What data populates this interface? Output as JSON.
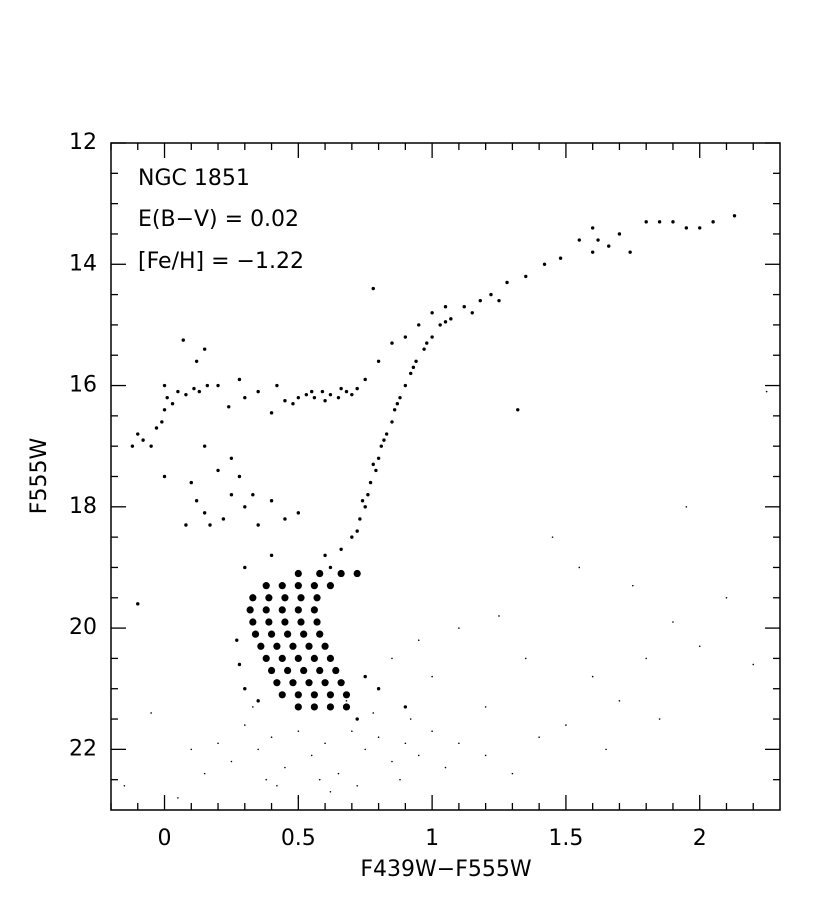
{
  "chart_data": {
    "type": "scatter",
    "x_label": "F439W−F555W",
    "y_label": "F555W",
    "annotations": [
      "NGC 1851",
      "E(B−V) = 0.02",
      "[Fe/H] = −1.22"
    ],
    "xlim": [
      -0.2,
      2.3
    ],
    "ylim": [
      23,
      12
    ],
    "xticks": [
      0,
      0.5,
      1,
      1.5,
      2
    ],
    "yticks": [
      12,
      14,
      16,
      18,
      20,
      22
    ],
    "x_minor_ticks": [
      -0.2,
      -0.1,
      0.1,
      0.2,
      0.3,
      0.4,
      0.6,
      0.7,
      0.8,
      0.9,
      1.1,
      1.2,
      1.3,
      1.4,
      1.6,
      1.7,
      1.8,
      1.9,
      2.1,
      2.2
    ],
    "y_minor_ticks": [
      12.5,
      13,
      13.5,
      14.5,
      15,
      15.5,
      16.5,
      17,
      17.5,
      18.5,
      19,
      19.5,
      20.5,
      21,
      21.5,
      22.5
    ],
    "series": [
      {
        "color": "#000000",
        "size": 3.6,
        "x": [
          0.5,
          0.58,
          0.66,
          0.72,
          0.38,
          0.44,
          0.5,
          0.56,
          0.62,
          0.33,
          0.39,
          0.45,
          0.51,
          0.57,
          0.32,
          0.38,
          0.44,
          0.5,
          0.56,
          0.33,
          0.39,
          0.45,
          0.51,
          0.57,
          0.34,
          0.4,
          0.46,
          0.52,
          0.58,
          0.36,
          0.42,
          0.48,
          0.54,
          0.6,
          0.38,
          0.44,
          0.5,
          0.56,
          0.62,
          0.4,
          0.46,
          0.52,
          0.58,
          0.64,
          0.42,
          0.48,
          0.54,
          0.6,
          0.66,
          0.44,
          0.5,
          0.56,
          0.62,
          0.68,
          0.5,
          0.56,
          0.62,
          0.68
        ],
        "y": [
          19.1,
          19.1,
          19.1,
          19.1,
          19.3,
          19.3,
          19.3,
          19.3,
          19.3,
          19.5,
          19.5,
          19.5,
          19.5,
          19.5,
          19.7,
          19.7,
          19.7,
          19.7,
          19.7,
          19.9,
          19.9,
          19.9,
          19.9,
          19.9,
          20.1,
          20.1,
          20.1,
          20.1,
          20.1,
          20.3,
          20.3,
          20.3,
          20.3,
          20.3,
          20.5,
          20.5,
          20.5,
          20.5,
          20.5,
          20.7,
          20.7,
          20.7,
          20.7,
          20.7,
          20.9,
          20.9,
          20.9,
          20.9,
          20.9,
          21.1,
          21.1,
          21.1,
          21.1,
          21.1,
          21.3,
          21.3,
          21.3,
          21.3
        ]
      },
      {
        "color": "#000000",
        "size": 1.7,
        "x": [
          0.62,
          0.66,
          0.7,
          0.73,
          0.75,
          0.76,
          0.77,
          0.79,
          0.8,
          0.81,
          0.83,
          0.85,
          0.86,
          0.88,
          0.9,
          0.92,
          0.94,
          0.97,
          1.0,
          1.03,
          1.07,
          1.12,
          1.18,
          1.22,
          1.28,
          1.35,
          1.42,
          1.48,
          0.78,
          0.74,
          0.72,
          0.82,
          0.87,
          0.93,
          1.05,
          0.98,
          1.15,
          1.25,
          0.85,
          0.9,
          0.95,
          1.0,
          1.05,
          0.8,
          0.75,
          1.6,
          1.62,
          1.66,
          1.7,
          1.74,
          1.8,
          1.85,
          1.9,
          1.95,
          2.0,
          2.05,
          2.13,
          1.6,
          1.55,
          0.5,
          0.53,
          0.56,
          0.59,
          0.62,
          0.65,
          0.68,
          0.7,
          0.72,
          0.55,
          0.6,
          0.66,
          0.48,
          0.45,
          0.4,
          0.42,
          0.35,
          0.3,
          0.28,
          0.24,
          0.2,
          0.15,
          0.12,
          0.07,
          -0.12,
          -0.1,
          -0.08,
          -0.05,
          -0.03,
          -0.01,
          0.0,
          0.01,
          0.03,
          0.05,
          0.08,
          0.11,
          0.13,
          0.16,
          0.0,
          0.0,
          0.1,
          0.12,
          0.15,
          0.17,
          0.08,
          0.25,
          0.3,
          0.22,
          0.35,
          0.28,
          0.2,
          0.33,
          0.4,
          0.15,
          0.25,
          0.45,
          0.5,
          0.3,
          0.4,
          0.6,
          0.27,
          0.28,
          0.35,
          0.75,
          0.8,
          0.72,
          -0.1,
          0.9,
          0.3,
          1.32,
          0.78
        ],
        "y": [
          19.0,
          18.7,
          18.5,
          18.2,
          18.0,
          17.8,
          17.6,
          17.4,
          17.2,
          17.0,
          16.8,
          16.6,
          16.4,
          16.2,
          16.0,
          15.8,
          15.6,
          15.4,
          15.2,
          15.0,
          14.9,
          14.7,
          14.6,
          14.5,
          14.3,
          14.2,
          14.0,
          13.9,
          17.3,
          17.9,
          18.4,
          16.9,
          16.3,
          15.7,
          14.95,
          15.3,
          14.8,
          14.6,
          15.3,
          15.2,
          15.0,
          14.8,
          14.7,
          15.6,
          15.9,
          13.4,
          13.6,
          13.7,
          13.5,
          13.8,
          13.3,
          13.3,
          13.3,
          13.4,
          13.4,
          13.3,
          13.2,
          13.8,
          13.6,
          16.2,
          16.15,
          16.2,
          16.1,
          16.15,
          16.2,
          16.1,
          16.15,
          16.05,
          16.1,
          16.25,
          16.05,
          16.3,
          16.25,
          16.45,
          16.0,
          16.1,
          16.2,
          15.9,
          16.35,
          16.0,
          15.4,
          15.6,
          15.25,
          17.0,
          16.8,
          16.9,
          17.0,
          16.7,
          16.6,
          16.4,
          16.2,
          16.3,
          16.1,
          16.15,
          16.05,
          16.1,
          16.0,
          16.0,
          17.5,
          17.6,
          17.9,
          18.1,
          18.3,
          18.3,
          17.8,
          18.0,
          18.2,
          18.3,
          17.5,
          17.4,
          17.8,
          17.9,
          17.0,
          17.2,
          18.2,
          18.1,
          19.0,
          18.8,
          18.8,
          20.2,
          20.6,
          21.2,
          20.8,
          21.0,
          21.5,
          19.6,
          21.3,
          21.0,
          16.4,
          14.4
        ]
      },
      {
        "color": "#000000",
        "size": 0.8,
        "x": [
          0.3,
          0.35,
          0.4,
          0.45,
          0.5,
          0.55,
          0.6,
          0.65,
          0.7,
          0.75,
          0.8,
          0.85,
          0.9,
          0.95,
          1.0,
          0.42,
          0.58,
          0.72,
          0.88,
          0.25,
          0.2,
          0.15,
          0.1,
          1.05,
          1.1,
          1.2,
          1.3,
          0.33,
          0.68,
          0.78,
          0.92,
          0.5,
          0.62,
          0.38,
          -0.15,
          -0.05,
          0.05,
          1.4,
          1.5,
          1.6,
          1.7,
          1.8,
          1.9,
          2.0,
          2.1,
          2.2,
          1.75,
          1.55,
          1.35,
          1.25,
          1.1,
          1.0,
          1.45,
          1.95,
          2.25,
          1.2,
          0.85,
          0.95,
          1.65,
          1.85
        ],
        "y": [
          21.6,
          22.0,
          21.8,
          22.3,
          21.7,
          22.1,
          21.9,
          22.4,
          21.7,
          22.0,
          21.8,
          22.2,
          21.9,
          22.1,
          21.7,
          22.6,
          22.5,
          22.6,
          22.5,
          22.2,
          21.9,
          22.4,
          22.0,
          22.3,
          21.9,
          22.1,
          22.4,
          21.3,
          21.2,
          21.4,
          21.5,
          22.8,
          22.7,
          22.5,
          22.6,
          21.4,
          22.8,
          21.8,
          21.6,
          20.8,
          21.2,
          20.5,
          19.9,
          20.3,
          19.5,
          20.6,
          19.3,
          19.0,
          20.5,
          19.8,
          20.0,
          20.8,
          18.5,
          18.0,
          16.1,
          21.3,
          20.5,
          20.2,
          22.0,
          21.5
        ]
      }
    ]
  }
}
